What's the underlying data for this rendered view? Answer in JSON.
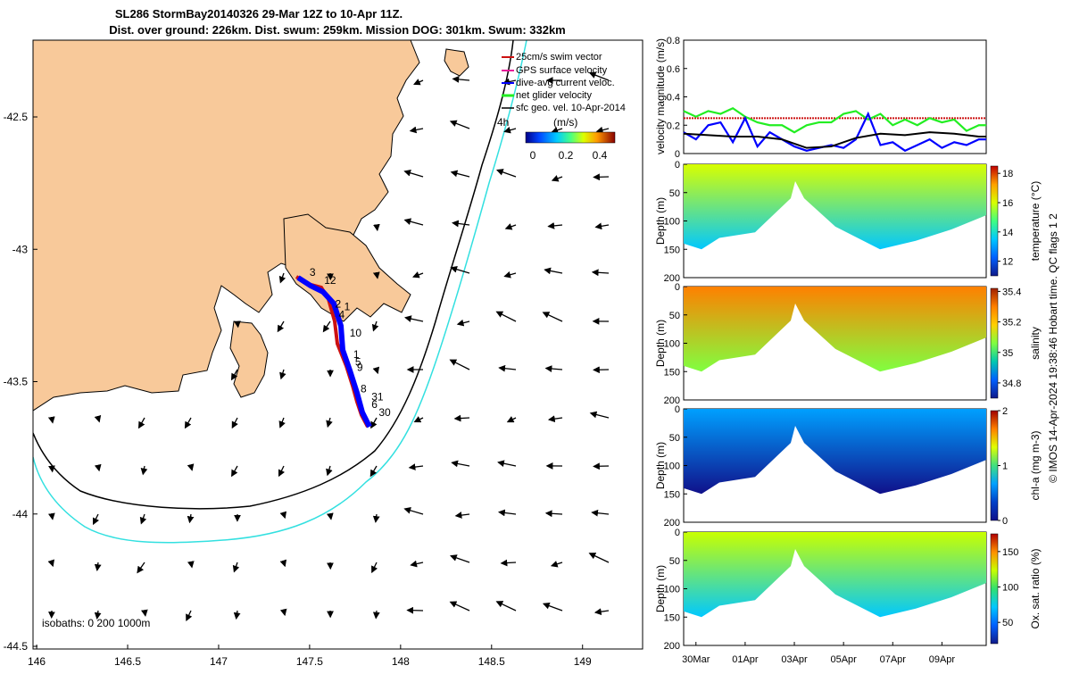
{
  "title_line1": "SL286 StormBay20140326 29-Mar 12Z to 10-Apr 11Z.",
  "title_line2": "Dist. over ground: 226km. Dist. swum: 259km. Mission DOG: 301km. Swum: 332km",
  "footer_text": "© IMOS 14-Apr-2024 19:38:46 Hobart time. QC flags 1  2",
  "colors": {
    "land": "#f8c99a",
    "isobath_200": "#000000",
    "isobath_1000": "#33e0e0",
    "glider_swim": "#cc1111",
    "gps_surface": "#e8189a",
    "dive_avg": "#0000ff",
    "net_velocity": "#22ee22",
    "geo_velocity": "#000000"
  },
  "chart_data": [
    {
      "type": "scatter",
      "name": "map",
      "xlim": [
        145.98,
        149.33
      ],
      "ylim": [
        -44.51,
        -42.21
      ],
      "xticks": [
        146,
        146.5,
        147,
        147.5,
        148,
        148.5,
        149
      ],
      "xtick_labels": [
        "146",
        "146.5",
        "147",
        "147.5",
        "148",
        "148.5",
        "149"
      ],
      "yticks": [
        -42.5,
        -43,
        -43.5,
        -44,
        -44.5
      ],
      "ytick_labels": [
        "-42.5",
        "-43",
        "-43.5",
        "-44",
        "-44.5"
      ],
      "isobaths_label": "isobaths: 0   200  1000m",
      "legend": {
        "items": [
          "25cm/s swim vector",
          "GPS surface velocity",
          "dive-avg current veloc.",
          "net glider velocity",
          "sfc geo. vel. 10-Apr-2014"
        ],
        "time_label": "4h",
        "colorbar_title": "(m/s)",
        "colorbar_ticks": [
          "0",
          "0.2",
          "0.4"
        ]
      },
      "track_labels": [
        {
          "text": "3",
          "lon": 147.5,
          "lat": -43.1
        },
        {
          "text": "12",
          "lon": 147.58,
          "lat": -43.13
        },
        {
          "text": "2",
          "lon": 147.64,
          "lat": -43.22
        },
        {
          "text": "1",
          "lon": 147.69,
          "lat": -43.23
        },
        {
          "text": "4",
          "lon": 147.66,
          "lat": -43.26
        },
        {
          "text": "10",
          "lon": 147.72,
          "lat": -43.33
        },
        {
          "text": "1",
          "lon": 147.74,
          "lat": -43.41
        },
        {
          "text": "5",
          "lon": 147.75,
          "lat": -43.44
        },
        {
          "text": "9",
          "lon": 147.76,
          "lat": -43.46
        },
        {
          "text": "8",
          "lon": 147.78,
          "lat": -43.54
        },
        {
          "text": "31",
          "lon": 147.84,
          "lat": -43.57
        },
        {
          "text": "6",
          "lon": 147.84,
          "lat": -43.6
        },
        {
          "text": "30",
          "lon": 147.88,
          "lat": -43.63
        }
      ]
    },
    {
      "type": "line",
      "name": "velocity",
      "ylabel": "velocity magnitude (m/s)",
      "ylim": [
        0,
        0.8
      ],
      "yticks": [
        0,
        0.2,
        0.4,
        0.6,
        0.8
      ],
      "xlim": [
        0,
        12.3
      ],
      "series": [
        {
          "name": "net glider velocity",
          "color": "#22ee22",
          "x": [
            0,
            0.5,
            1,
            1.5,
            2,
            2.5,
            3,
            3.5,
            4,
            4.5,
            5,
            5.5,
            6,
            6.5,
            7,
            7.5,
            8,
            8.5,
            9,
            9.5,
            10,
            10.5,
            11,
            11.5,
            12,
            12.3
          ],
          "values": [
            0.3,
            0.26,
            0.3,
            0.28,
            0.32,
            0.26,
            0.22,
            0.2,
            0.2,
            0.15,
            0.2,
            0.22,
            0.22,
            0.28,
            0.3,
            0.24,
            0.28,
            0.2,
            0.24,
            0.2,
            0.25,
            0.22,
            0.24,
            0.16,
            0.2,
            0.2
          ]
        },
        {
          "name": "dive-avg current veloc.",
          "color": "#0000ff",
          "x": [
            0,
            0.5,
            1,
            1.5,
            2,
            2.5,
            3,
            3.5,
            4,
            4.5,
            5,
            5.5,
            6,
            6.5,
            7,
            7.5,
            8,
            8.5,
            9,
            9.5,
            10,
            10.5,
            11,
            11.5,
            12,
            12.3
          ],
          "values": [
            0.15,
            0.1,
            0.2,
            0.22,
            0.08,
            0.25,
            0.05,
            0.15,
            0.1,
            0.05,
            0.02,
            0.04,
            0.06,
            0.04,
            0.1,
            0.28,
            0.06,
            0.08,
            0.02,
            0.06,
            0.1,
            0.04,
            0.08,
            0.06,
            0.1,
            0.1
          ]
        },
        {
          "name": "sfc geo. vel. 10-Apr-2014",
          "color": "#000000",
          "x": [
            0,
            1,
            2,
            3,
            4,
            5,
            6,
            7,
            8,
            9,
            10,
            11,
            12,
            12.3
          ],
          "values": [
            0.14,
            0.13,
            0.12,
            0.12,
            0.1,
            0.04,
            0.05,
            0.11,
            0.14,
            0.13,
            0.15,
            0.14,
            0.12,
            0.12
          ]
        }
      ],
      "swim_vector_level": 0.25
    },
    {
      "type": "heatmap",
      "name": "temperature",
      "ylabel": "Depth (m)",
      "colorbar_label": "temperature (°C)",
      "colorbar_ticks": [
        "12",
        "14",
        "16",
        "18"
      ],
      "clim": [
        11,
        18.5
      ],
      "yticks": [
        "0",
        "50",
        "100",
        "150",
        "200"
      ]
    },
    {
      "type": "heatmap",
      "name": "salinity",
      "ylabel": "Depth (m)",
      "colorbar_label": "salinity",
      "colorbar_ticks": [
        "34.8",
        "35",
        "35.2",
        "35.4"
      ],
      "clim": [
        34.7,
        35.42
      ],
      "yticks": [
        "0",
        "50",
        "100",
        "150",
        "200"
      ]
    },
    {
      "type": "heatmap",
      "name": "chl-a",
      "ylabel": "Depth (m)",
      "colorbar_label": "chl-a (mg m-3)",
      "colorbar_ticks": [
        "0",
        "1",
        "2"
      ],
      "clim": [
        0,
        2
      ],
      "yticks": [
        "0",
        "50",
        "100",
        "150",
        "200"
      ]
    },
    {
      "type": "heatmap",
      "name": "oxygen",
      "ylabel": "Depth (m)",
      "colorbar_label": "Ox. sat. ratio (%)",
      "colorbar_ticks": [
        "50",
        "100",
        "150"
      ],
      "clim": [
        20,
        175
      ],
      "yticks": [
        "0",
        "50",
        "100",
        "150",
        "200"
      ],
      "xtick_labels": [
        "30Mar",
        "01Apr",
        "03Apr",
        "05Apr",
        "07Apr",
        "09Apr"
      ],
      "xtick_days": [
        0.5,
        2.5,
        4.5,
        6.5,
        8.5,
        10.5
      ]
    }
  ]
}
